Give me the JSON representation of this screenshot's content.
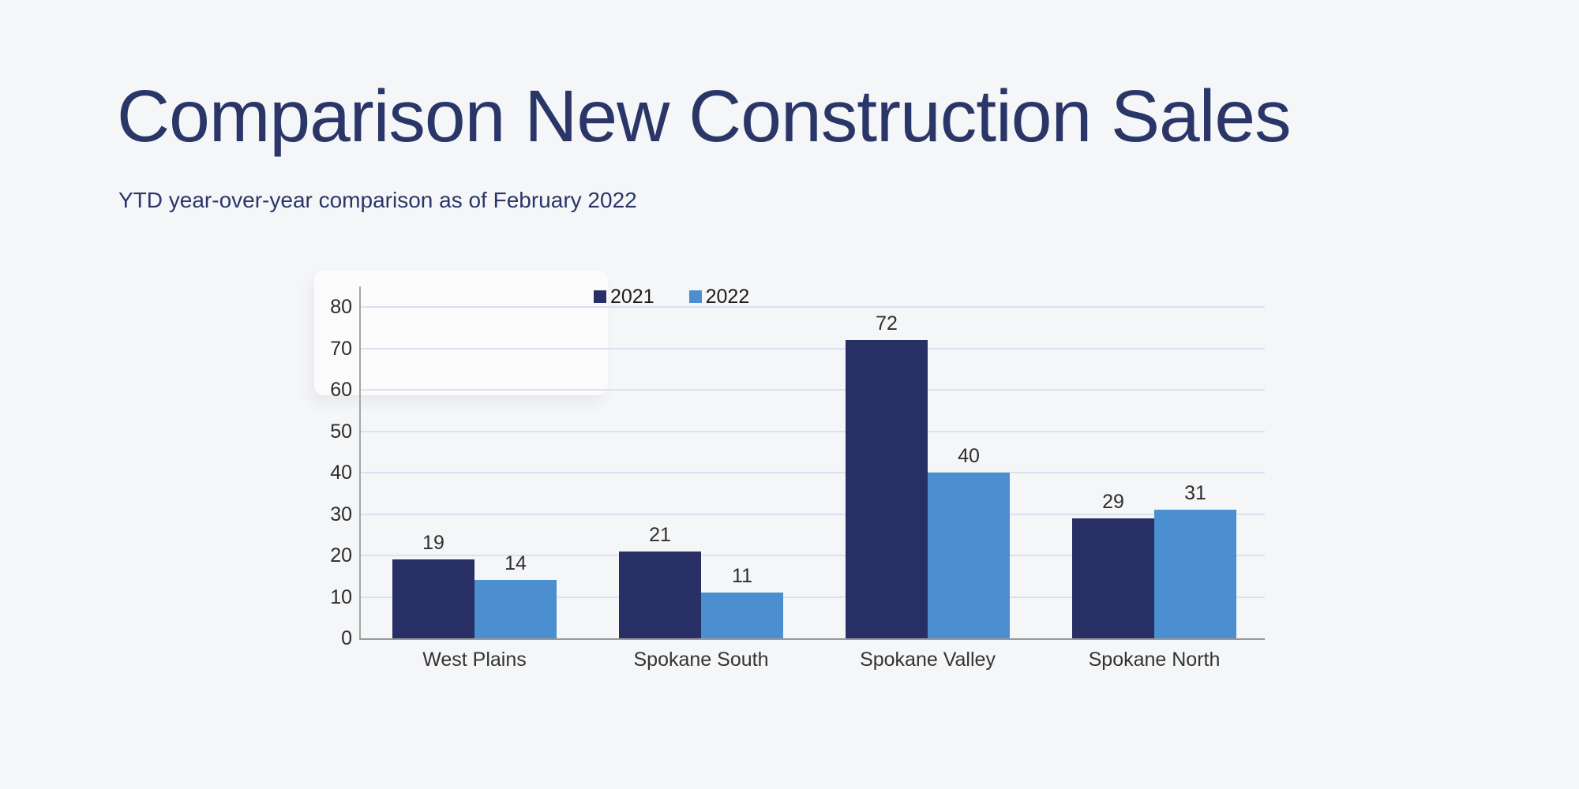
{
  "slide": {
    "title": "Comparison New Construction Sales",
    "subtitle": "YTD year-over-year comparison as of February 2022",
    "background_color": "#f5f6f8",
    "title_color": "#2b3668"
  },
  "chart_data": {
    "type": "bar",
    "title": "Comparison New Construction Sales",
    "subtitle": "YTD year-over-year comparison as of February 2022",
    "categories": [
      "West Plains",
      "Spokane South",
      "Spokane Valley",
      "Spokane North"
    ],
    "series": [
      {
        "name": "2021",
        "color": "#272f64",
        "values": [
          19,
          21,
          72,
          29
        ]
      },
      {
        "name": "2022",
        "color": "#4b8fd1",
        "values": [
          14,
          11,
          40,
          31
        ]
      }
    ],
    "xlabel": "",
    "ylabel": "",
    "ylim": [
      0,
      80
    ],
    "yticks": [
      0,
      10,
      20,
      30,
      40,
      50,
      60,
      70,
      80
    ],
    "grid": true,
    "gridline_color": "#dbe1f0",
    "axis_line_color": "#9a9a9a",
    "legend_position": "top-center",
    "value_labels": true
  }
}
